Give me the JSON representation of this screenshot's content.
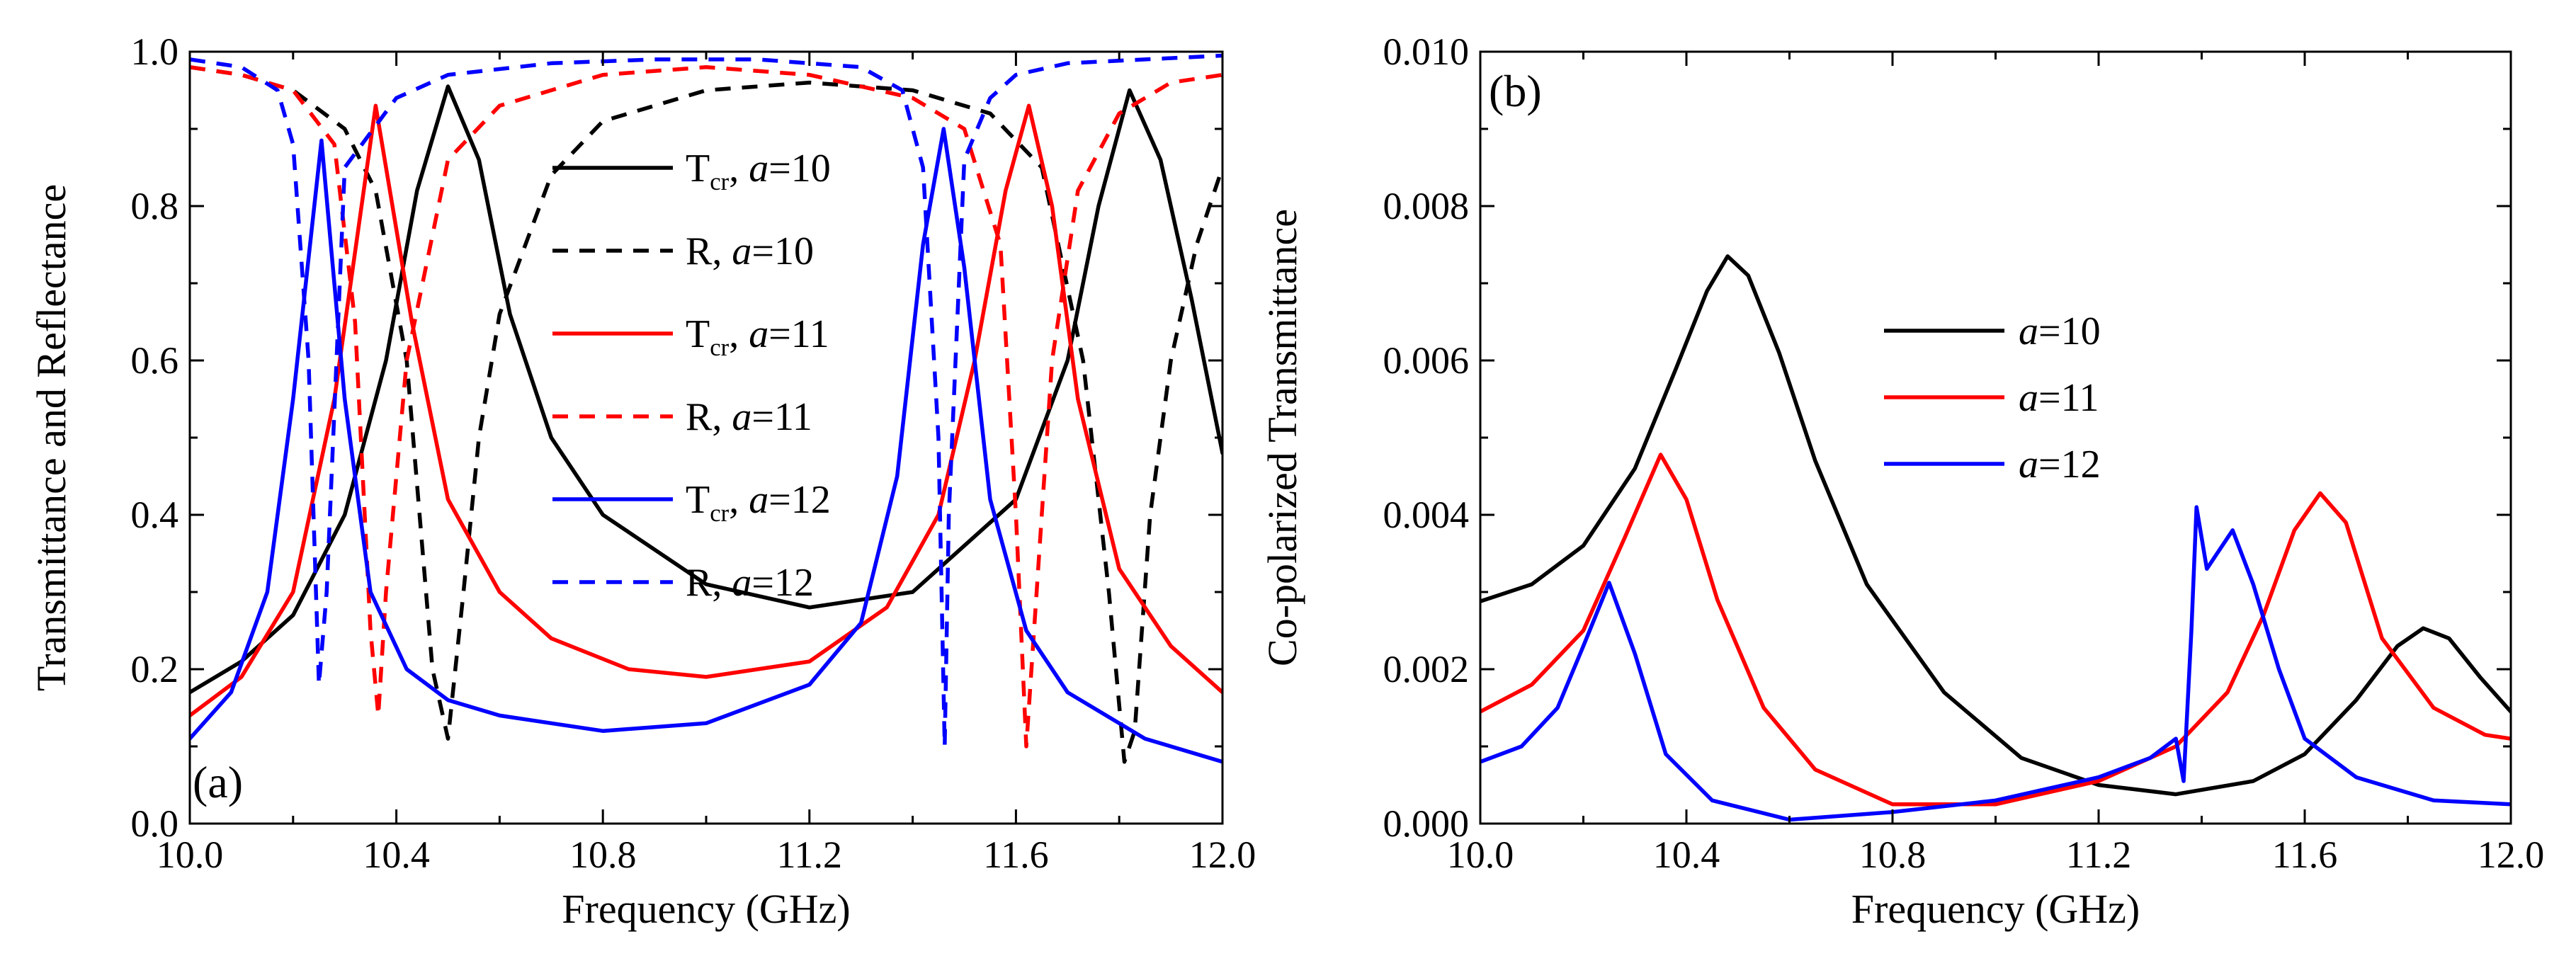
{
  "chart_data": [
    {
      "type": "line",
      "panel_label": "(a)",
      "xlabel": "Frequency (GHz)",
      "ylabel": "Transmittance and Reflectance",
      "xlim": [
        10.0,
        12.0
      ],
      "ylim": [
        0.0,
        1.0
      ],
      "x_ticks": [
        "10.0",
        "10.4",
        "10.8",
        "11.2",
        "11.6",
        "12.0"
      ],
      "y_ticks": [
        "0.0",
        "0.2",
        "0.4",
        "0.6",
        "0.8",
        "1.0"
      ],
      "legend_position": "center-right",
      "grid": false,
      "series": [
        {
          "name": "Tcr, a=10",
          "legend_main": "T",
          "legend_sub": "cr",
          "legend_tail": ", ",
          "legend_var": "a",
          "legend_val": "=10",
          "color": "#000000",
          "dash": "solid",
          "x": [
            10.0,
            10.1,
            10.2,
            10.3,
            10.38,
            10.44,
            10.5,
            10.56,
            10.62,
            10.7,
            10.8,
            11.0,
            11.2,
            11.4,
            11.6,
            11.7,
            11.76,
            11.82,
            11.88,
            11.94,
            12.0
          ],
          "y": [
            0.17,
            0.21,
            0.27,
            0.4,
            0.6,
            0.82,
            0.955,
            0.86,
            0.66,
            0.5,
            0.4,
            0.31,
            0.28,
            0.3,
            0.42,
            0.6,
            0.8,
            0.95,
            0.86,
            0.68,
            0.48
          ]
        },
        {
          "name": "R, a=10",
          "legend_main": "R",
          "legend_sub": "",
          "legend_tail": ", ",
          "legend_var": "a",
          "legend_val": "=10",
          "color": "#000000",
          "dash": "dashed",
          "x": [
            10.0,
            10.1,
            10.2,
            10.3,
            10.36,
            10.42,
            10.47,
            10.5,
            10.53,
            10.56,
            10.6,
            10.7,
            10.8,
            11.0,
            11.2,
            11.4,
            11.55,
            11.65,
            11.73,
            11.78,
            11.81,
            11.83,
            11.86,
            11.9,
            11.95,
            12.0
          ],
          "y": [
            0.98,
            0.97,
            0.95,
            0.9,
            0.82,
            0.6,
            0.2,
            0.11,
            0.3,
            0.5,
            0.66,
            0.84,
            0.91,
            0.95,
            0.96,
            0.95,
            0.92,
            0.85,
            0.6,
            0.3,
            0.08,
            0.12,
            0.4,
            0.6,
            0.75,
            0.85
          ]
        },
        {
          "name": "Tcr, a=11",
          "legend_main": "T",
          "legend_sub": "cr",
          "legend_tail": ", ",
          "legend_var": "a",
          "legend_val": "=11",
          "color": "#ff0000",
          "dash": "solid",
          "x": [
            10.0,
            10.1,
            10.2,
            10.28,
            10.36,
            10.43,
            10.5,
            10.6,
            10.7,
            10.85,
            11.0,
            11.2,
            11.35,
            11.45,
            11.52,
            11.58,
            11.625,
            11.67,
            11.72,
            11.8,
            11.9,
            12.0
          ],
          "y": [
            0.14,
            0.19,
            0.3,
            0.55,
            0.93,
            0.65,
            0.42,
            0.3,
            0.24,
            0.2,
            0.19,
            0.21,
            0.28,
            0.4,
            0.6,
            0.82,
            0.93,
            0.8,
            0.55,
            0.33,
            0.23,
            0.17
          ]
        },
        {
          "name": "R, a=11",
          "legend_main": "R",
          "legend_sub": "",
          "legend_tail": ", ",
          "legend_var": "a",
          "legend_val": "=11",
          "color": "#ff0000",
          "dash": "dashed",
          "x": [
            10.0,
            10.1,
            10.2,
            10.28,
            10.32,
            10.35,
            10.365,
            10.38,
            10.42,
            10.5,
            10.6,
            10.8,
            11.0,
            11.2,
            11.4,
            11.5,
            11.57,
            11.6,
            11.62,
            11.64,
            11.67,
            11.72,
            11.8,
            11.9,
            12.0
          ],
          "y": [
            0.98,
            0.97,
            0.95,
            0.88,
            0.65,
            0.25,
            0.14,
            0.3,
            0.6,
            0.86,
            0.93,
            0.97,
            0.98,
            0.97,
            0.94,
            0.9,
            0.75,
            0.4,
            0.1,
            0.3,
            0.6,
            0.82,
            0.92,
            0.96,
            0.97
          ]
        },
        {
          "name": "Tcr, a=12",
          "legend_main": "T",
          "legend_sub": "cr",
          "legend_tail": ", ",
          "legend_var": "a",
          "legend_val": "=12",
          "color": "#0000ff",
          "dash": "solid",
          "x": [
            10.0,
            10.08,
            10.15,
            10.2,
            10.255,
            10.3,
            10.35,
            10.42,
            10.5,
            10.6,
            10.8,
            11.0,
            11.2,
            11.3,
            11.37,
            11.42,
            11.46,
            11.5,
            11.55,
            11.62,
            11.7,
            11.85,
            12.0
          ],
          "y": [
            0.11,
            0.17,
            0.3,
            0.55,
            0.885,
            0.55,
            0.3,
            0.2,
            0.16,
            0.14,
            0.12,
            0.13,
            0.18,
            0.26,
            0.45,
            0.75,
            0.9,
            0.72,
            0.42,
            0.25,
            0.17,
            0.11,
            0.08
          ]
        },
        {
          "name": "R, a=12",
          "legend_main": "R",
          "legend_sub": "",
          "legend_tail": ", ",
          "legend_var": "a",
          "legend_val": "=12",
          "color": "#0000ff",
          "dash": "dashed",
          "x": [
            10.0,
            10.1,
            10.17,
            10.2,
            10.23,
            10.25,
            10.265,
            10.3,
            10.4,
            10.5,
            10.7,
            10.9,
            11.1,
            11.3,
            11.38,
            11.42,
            11.45,
            11.462,
            11.47,
            11.5,
            11.55,
            11.6,
            11.7,
            11.85,
            12.0
          ],
          "y": [
            0.99,
            0.98,
            0.95,
            0.88,
            0.6,
            0.18,
            0.3,
            0.85,
            0.94,
            0.97,
            0.985,
            0.99,
            0.99,
            0.98,
            0.95,
            0.85,
            0.5,
            0.1,
            0.4,
            0.86,
            0.94,
            0.97,
            0.985,
            0.99,
            0.995
          ]
        }
      ]
    },
    {
      "type": "line",
      "panel_label": "(b)",
      "xlabel": "Frequency (GHz)",
      "ylabel": "Co-polarized Transmittance",
      "xlim": [
        10.0,
        12.0
      ],
      "ylim": [
        0.0,
        0.01
      ],
      "x_ticks": [
        "10.0",
        "10.4",
        "10.8",
        "11.2",
        "11.6",
        "12.0"
      ],
      "y_ticks": [
        "0.000",
        "0.002",
        "0.004",
        "0.006",
        "0.008",
        "0.010"
      ],
      "legend_position": "center",
      "grid": false,
      "series": [
        {
          "name": "a=10",
          "legend_main": "",
          "legend_sub": "",
          "legend_tail": "",
          "legend_var": "a",
          "legend_val": "=10",
          "color": "#000000",
          "dash": "solid",
          "x": [
            10.0,
            10.1,
            10.2,
            10.3,
            10.38,
            10.44,
            10.48,
            10.52,
            10.58,
            10.65,
            10.75,
            10.9,
            11.05,
            11.2,
            11.35,
            11.5,
            11.6,
            11.7,
            11.78,
            11.83,
            11.88,
            11.94,
            12.0
          ],
          "y": [
            0.00288,
            0.0031,
            0.0036,
            0.0046,
            0.0059,
            0.0069,
            0.00735,
            0.0071,
            0.0061,
            0.0047,
            0.0031,
            0.0017,
            0.00085,
            0.0005,
            0.00038,
            0.00055,
            0.0009,
            0.0016,
            0.0023,
            0.00253,
            0.0024,
            0.0019,
            0.00145
          ]
        },
        {
          "name": "a=11",
          "legend_main": "",
          "legend_sub": "",
          "legend_tail": "",
          "legend_var": "a",
          "legend_val": "=11",
          "color": "#ff0000",
          "dash": "solid",
          "x": [
            10.0,
            10.1,
            10.2,
            10.28,
            10.35,
            10.4,
            10.46,
            10.55,
            10.65,
            10.8,
            11.0,
            11.2,
            11.35,
            11.45,
            11.52,
            11.58,
            11.63,
            11.68,
            11.75,
            11.85,
            11.95,
            12.0
          ],
          "y": [
            0.00145,
            0.0018,
            0.0025,
            0.0037,
            0.00478,
            0.0042,
            0.0029,
            0.0015,
            0.0007,
            0.00025,
            0.00025,
            0.00055,
            0.001,
            0.0017,
            0.0027,
            0.0038,
            0.00428,
            0.0039,
            0.0024,
            0.0015,
            0.00115,
            0.0011
          ]
        },
        {
          "name": "a=12",
          "legend_main": "",
          "legend_sub": "",
          "legend_tail": "",
          "legend_var": "a",
          "legend_val": "=12",
          "color": "#0000ff",
          "dash": "solid",
          "x": [
            10.0,
            10.08,
            10.15,
            10.2,
            10.25,
            10.3,
            10.36,
            10.45,
            10.6,
            10.8,
            11.0,
            11.2,
            11.3,
            11.35,
            11.365,
            11.38,
            11.39,
            11.41,
            11.43,
            11.46,
            11.5,
            11.55,
            11.6,
            11.7,
            11.85,
            12.0
          ],
          "y": [
            0.0008,
            0.001,
            0.0015,
            0.0023,
            0.00312,
            0.0022,
            0.0009,
            0.0003,
            5e-05,
            0.00015,
            0.0003,
            0.0006,
            0.00085,
            0.0011,
            0.00055,
            0.0025,
            0.0041,
            0.0033,
            0.0035,
            0.0038,
            0.0031,
            0.002,
            0.0011,
            0.0006,
            0.0003,
            0.00025
          ]
        }
      ]
    }
  ]
}
